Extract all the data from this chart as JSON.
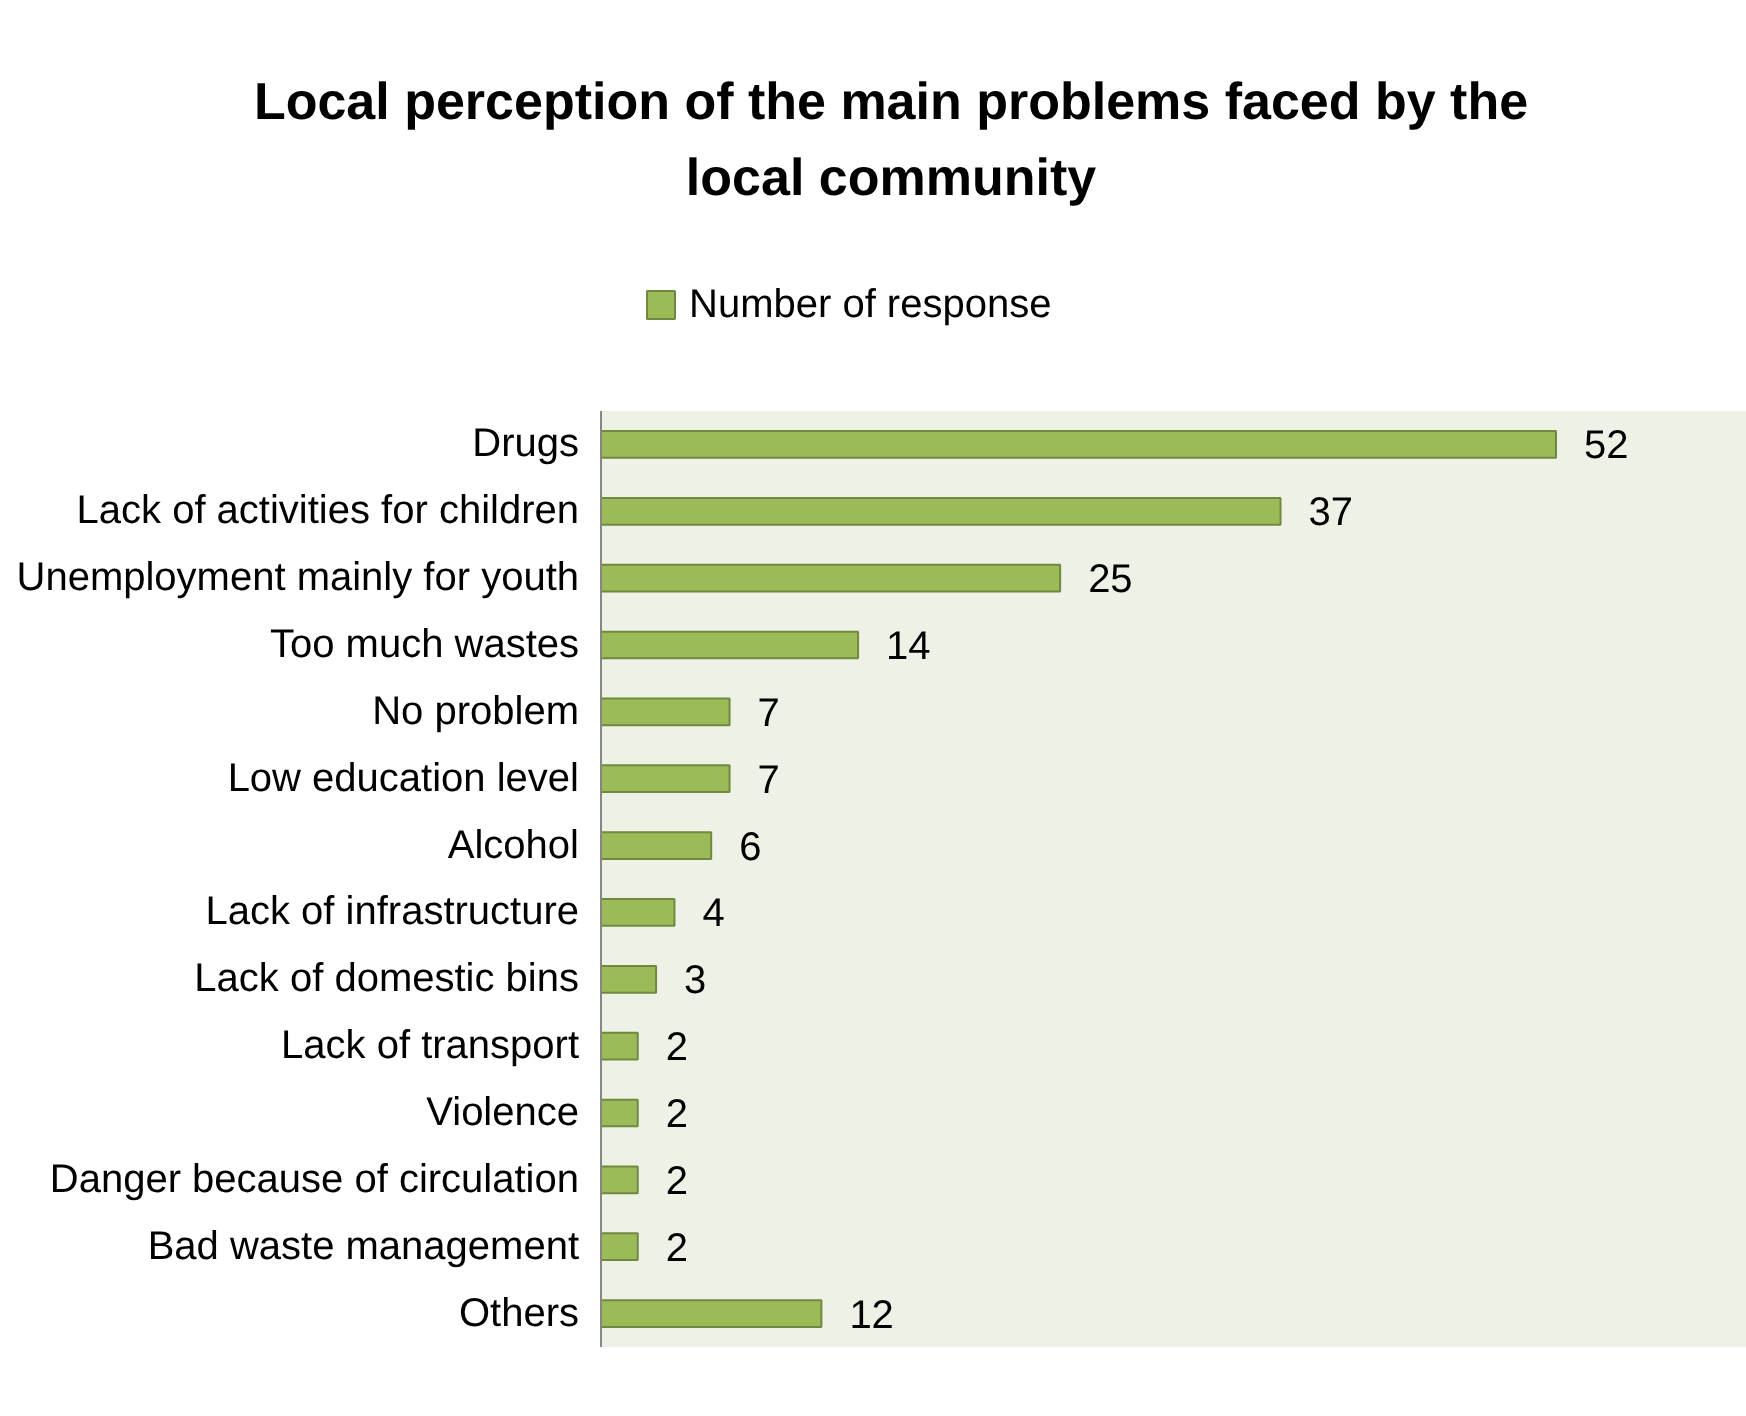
{
  "chart_data": {
    "type": "bar",
    "orientation": "horizontal",
    "title": "Local perception of the main problems faced by the local community",
    "categories": [
      "Drugs",
      "Lack of activities for children",
      "Unemployment mainly for youth",
      "Too much wastes",
      "No problem",
      "Low education level",
      "Alcohol",
      "Lack of infrastructure",
      "Lack of domestic bins",
      "Lack of transport",
      "Violence",
      "Danger because of circulation",
      "Bad waste management",
      "Others"
    ],
    "series": [
      {
        "name": "Number of response",
        "color": "#9bbb59",
        "values": [
          52,
          37,
          25,
          14,
          7,
          7,
          6,
          4,
          3,
          2,
          2,
          2,
          2,
          12
        ]
      }
    ],
    "data_labels": true,
    "legend": "top",
    "grid": false,
    "tick_labels": "y"
  }
}
